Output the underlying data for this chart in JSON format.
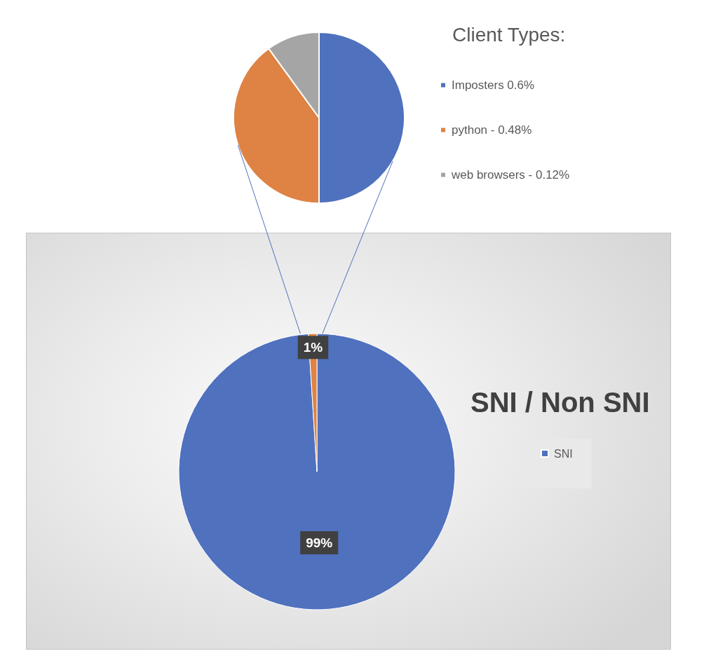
{
  "chart_data": [
    {
      "type": "pie",
      "legend_title": "Client Types:",
      "categories": [
        "Imposters 0.6%",
        "python - 0.48%",
        "web browsers - 0.12%"
      ],
      "values": [
        0.6,
        0.48,
        0.12
      ],
      "colors": [
        "#4f71be",
        "#de8344",
        "#a5a5a5"
      ],
      "legend": "right"
    },
    {
      "type": "pie",
      "title": "SNI / Non SNI",
      "categories": [
        "SNI",
        null
      ],
      "values": [
        99,
        1
      ],
      "colors": [
        "#4f71be",
        "#de8344"
      ],
      "value_labels": [
        "99%",
        "1%"
      ],
      "legend": "right"
    }
  ]
}
